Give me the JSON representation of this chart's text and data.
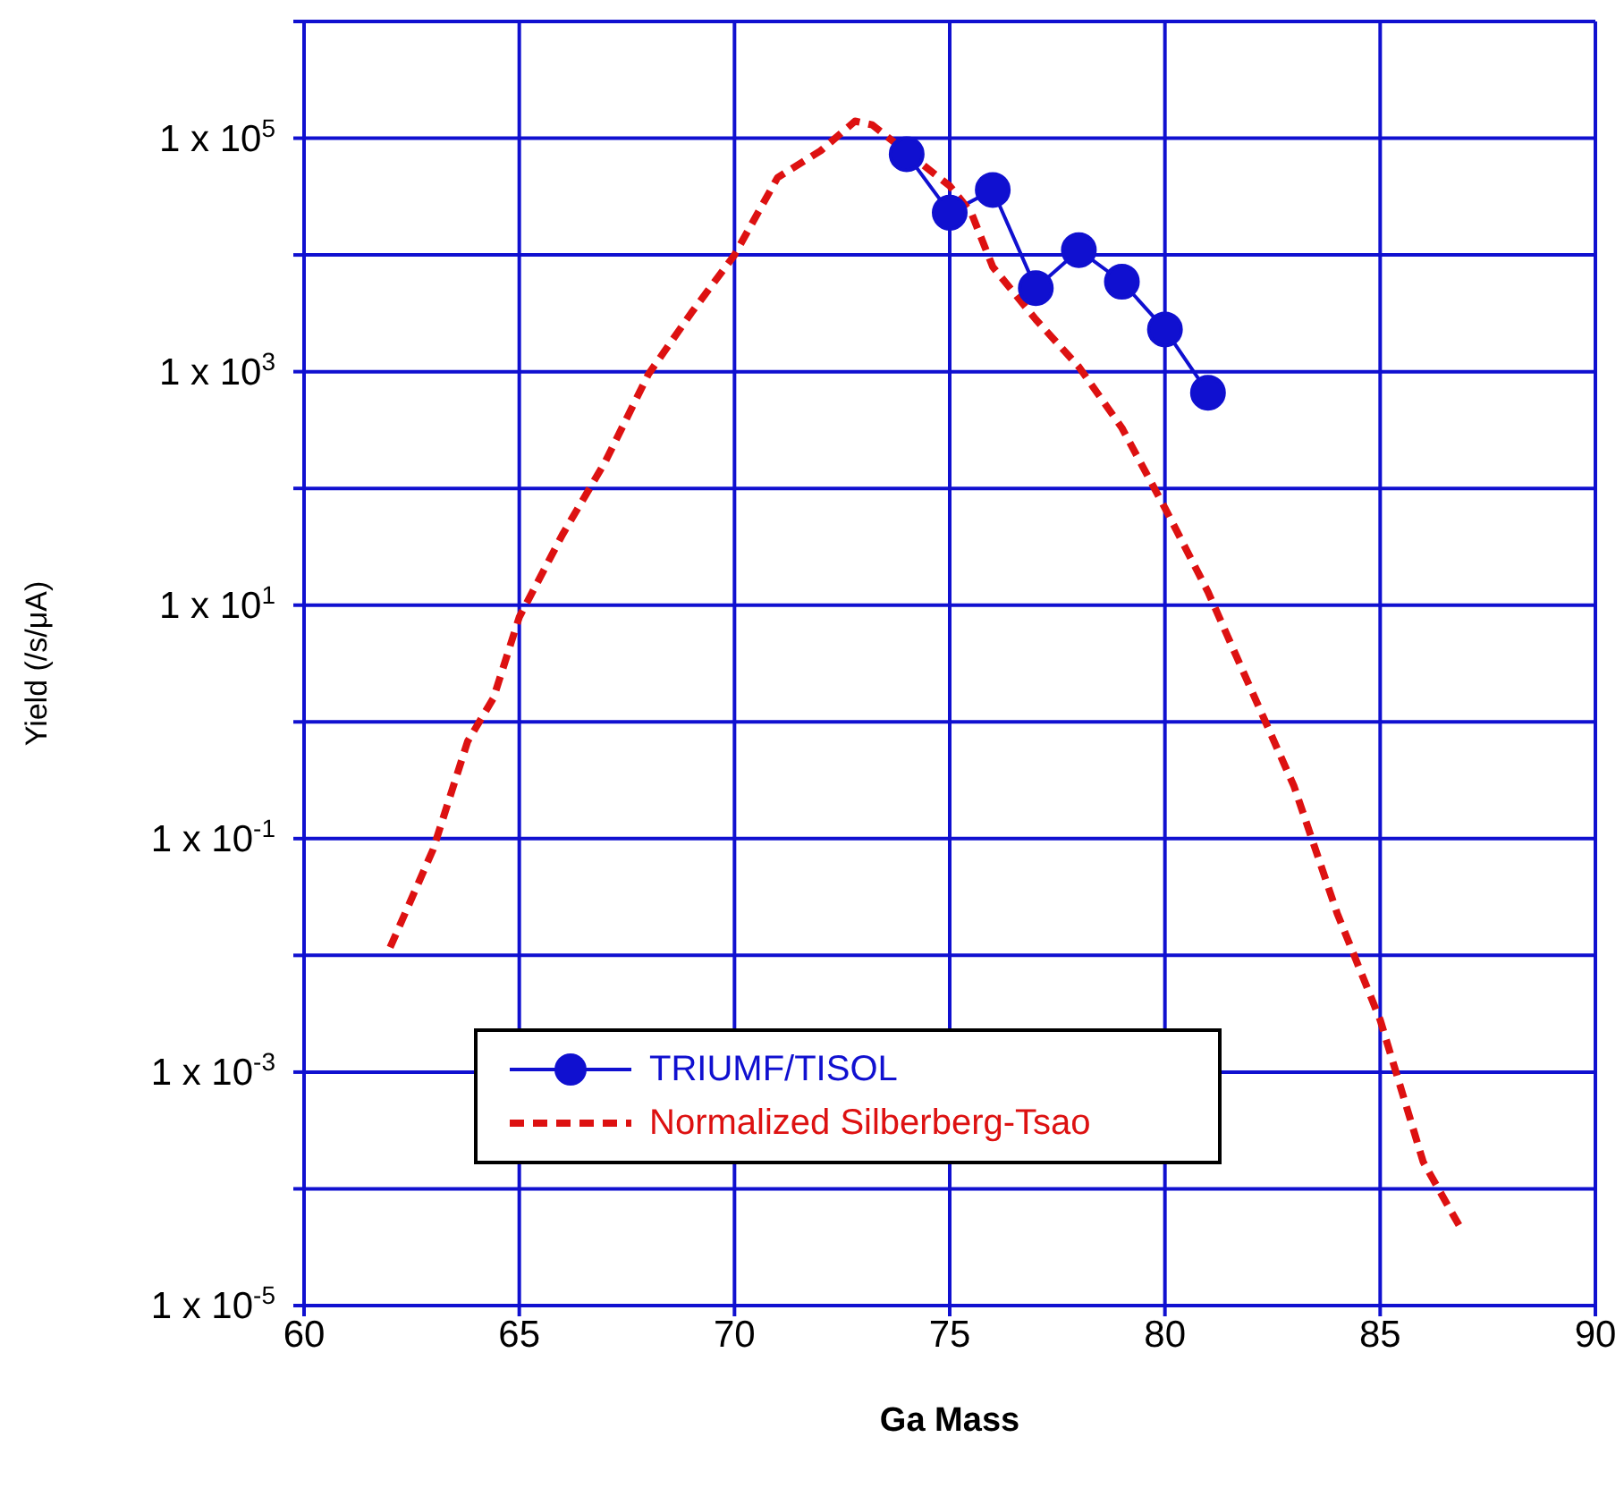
{
  "chart_data": {
    "type": "line",
    "xlabel": "Ga Mass",
    "ylabel": "Yield (/s/μA)",
    "log": "y",
    "grid": true,
    "legend": "bottom left",
    "xlim": [
      60,
      90
    ],
    "xticks": [
      60,
      65,
      70,
      75,
      80,
      85,
      90
    ],
    "ylim": [
      1e-05,
      1000000
    ],
    "yticks": [
      {
        "value": 1e-05,
        "label": "1 x 10$^{-5}$"
      },
      {
        "value": 0.0001,
        "label": null
      },
      {
        "value": 0.001,
        "label": "1 x 10$^{-3}$"
      },
      {
        "value": 0.01,
        "label": null
      },
      {
        "value": 0.1,
        "label": "1 x 10$^{-1}$"
      },
      {
        "value": 1,
        "label": null
      },
      {
        "value": 10,
        "label": "1 x 10$^{1}$"
      },
      {
        "value": 100,
        "label": null
      },
      {
        "value": 1000,
        "label": "1 x 10$^{3}$"
      },
      {
        "value": 10000,
        "label": null
      },
      {
        "value": 100000,
        "label": "1 x 10$^{5}$"
      },
      {
        "value": 1000000,
        "label": null
      }
    ],
    "series": [
      {
        "name": "TRIUMF/TISOL",
        "color": "#1010d0",
        "marker": "circle",
        "line_style": "solid",
        "x": [
          74,
          75,
          76,
          77,
          78,
          79,
          80,
          81
        ],
        "values": [
          73000,
          23000,
          36000,
          5200,
          11000,
          5900,
          2300,
          660
        ]
      },
      {
        "name": "Normalized Silberberg-Tsao",
        "color": "#dd1111",
        "marker": "none",
        "line_style": "dashed",
        "x": [
          62,
          63,
          63.8,
          64.4,
          65,
          66,
          67,
          68,
          69,
          70,
          71,
          72,
          72.8,
          73.2,
          75,
          75.5,
          76,
          77,
          78,
          79,
          80,
          81,
          82,
          83,
          84,
          85,
          86,
          86.9
        ],
        "values": [
          0.0117,
          0.081,
          0.68,
          1.6,
          7.9,
          40,
          170,
          950,
          3200,
          10000,
          46000,
          78000,
          140000,
          130000,
          39000,
          23000,
          7900,
          2800,
          1100,
          330,
          68,
          13,
          1.9,
          0.28,
          0.023,
          0.0028,
          0.00017,
          4.4e-05
        ]
      }
    ]
  }
}
